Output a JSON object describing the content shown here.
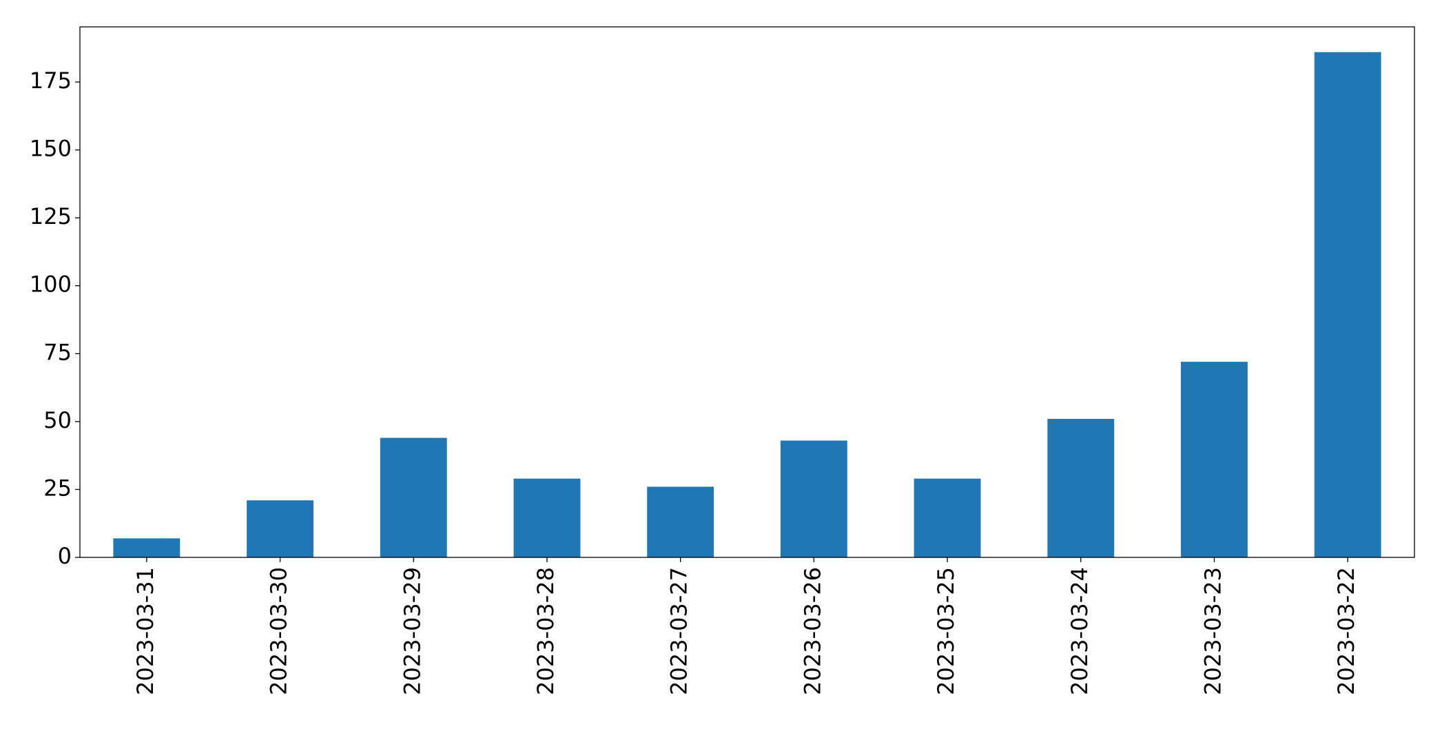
{
  "chart_data": {
    "type": "bar",
    "categories": [
      "2023-03-31",
      "2023-03-30",
      "2023-03-29",
      "2023-03-28",
      "2023-03-27",
      "2023-03-26",
      "2023-03-25",
      "2023-03-24",
      "2023-03-23",
      "2023-03-22"
    ],
    "values": [
      7,
      21,
      44,
      29,
      26,
      43,
      29,
      51,
      72,
      186
    ],
    "color": "#1f77b4",
    "ylim": [
      0,
      195.3
    ],
    "yticks": [
      0,
      25,
      50,
      75,
      100,
      125,
      150,
      175
    ],
    "grid": false
  }
}
